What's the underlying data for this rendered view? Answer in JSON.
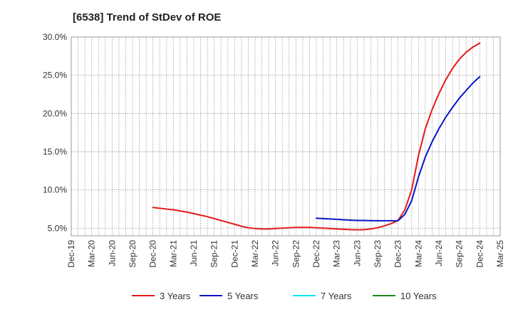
{
  "chart_data": {
    "type": "line",
    "title": "[6538]  Trend of StDev of ROE",
    "xlabel": "",
    "ylabel": "",
    "ylim": [
      4.0,
      30.0
    ],
    "y_ticks": [
      {
        "value": 5,
        "label": "5.0%"
      },
      {
        "value": 10,
        "label": "10.0%"
      },
      {
        "value": 15,
        "label": "15.0%"
      },
      {
        "value": 20,
        "label": "20.0%"
      },
      {
        "value": 25,
        "label": "25.0%"
      },
      {
        "value": 30,
        "label": "30.0%"
      }
    ],
    "x_ticks": [
      "Dec-19",
      "Mar-20",
      "Jun-20",
      "Sep-20",
      "Dec-20",
      "Mar-21",
      "Jun-21",
      "Sep-21",
      "Dec-21",
      "Mar-22",
      "Jun-22",
      "Sep-22",
      "Dec-22",
      "Mar-23",
      "Jun-23",
      "Sep-23",
      "Dec-23",
      "Mar-24",
      "Jun-24",
      "Sep-24",
      "Dec-24",
      "Mar-25"
    ],
    "grid": true,
    "legend_position": "bottom",
    "series": [
      {
        "name": "3 Years",
        "color": "#e31a1c",
        "points": [
          [
            "Dec-20",
            7.7
          ],
          [
            "Jan-21",
            7.6
          ],
          [
            "Feb-21",
            7.5
          ],
          [
            "Mar-21",
            7.4
          ],
          [
            "Apr-21",
            7.25
          ],
          [
            "May-21",
            7.1
          ],
          [
            "Jun-21",
            6.9
          ],
          [
            "Jul-21",
            6.7
          ],
          [
            "Aug-21",
            6.5
          ],
          [
            "Sep-21",
            6.25
          ],
          [
            "Oct-21",
            6.0
          ],
          [
            "Nov-21",
            5.75
          ],
          [
            "Dec-21",
            5.5
          ],
          [
            "Jan-22",
            5.25
          ],
          [
            "Feb-22",
            5.05
          ],
          [
            "Mar-22",
            4.95
          ],
          [
            "Apr-22",
            4.9
          ],
          [
            "May-22",
            4.9
          ],
          [
            "Jun-22",
            4.95
          ],
          [
            "Jul-22",
            5.0
          ],
          [
            "Aug-22",
            5.05
          ],
          [
            "Sep-22",
            5.1
          ],
          [
            "Oct-22",
            5.1
          ],
          [
            "Nov-22",
            5.1
          ],
          [
            "Dec-22",
            5.05
          ],
          [
            "Jan-23",
            5.0
          ],
          [
            "Feb-23",
            4.95
          ],
          [
            "Mar-23",
            4.9
          ],
          [
            "Apr-23",
            4.85
          ],
          [
            "May-23",
            4.8
          ],
          [
            "Jun-23",
            4.78
          ],
          [
            "Jul-23",
            4.8
          ],
          [
            "Aug-23",
            4.9
          ],
          [
            "Sep-23",
            5.05
          ],
          [
            "Oct-23",
            5.3
          ],
          [
            "Nov-23",
            5.6
          ],
          [
            "Dec-23",
            6.0
          ],
          [
            "Jan-24",
            7.4
          ],
          [
            "Feb-24",
            10.0
          ],
          [
            "Mar-24",
            14.5
          ],
          [
            "Apr-24",
            18.0
          ],
          [
            "May-24",
            20.5
          ],
          [
            "Jun-24",
            22.6
          ],
          [
            "Jul-24",
            24.4
          ],
          [
            "Aug-24",
            25.9
          ],
          [
            "Sep-24",
            27.1
          ],
          [
            "Oct-24",
            28.0
          ],
          [
            "Nov-24",
            28.7
          ],
          [
            "Dec-24",
            29.2
          ]
        ]
      },
      {
        "name": "5 Years",
        "color": "#0a14c8",
        "points": [
          [
            "Dec-22",
            6.3
          ],
          [
            "Jan-23",
            6.25
          ],
          [
            "Feb-23",
            6.2
          ],
          [
            "Mar-23",
            6.15
          ],
          [
            "Apr-23",
            6.1
          ],
          [
            "May-23",
            6.05
          ],
          [
            "Jun-23",
            6.0
          ],
          [
            "Jul-23",
            6.0
          ],
          [
            "Aug-23",
            5.98
          ],
          [
            "Sep-23",
            5.97
          ],
          [
            "Oct-23",
            5.97
          ],
          [
            "Nov-23",
            5.97
          ],
          [
            "Dec-23",
            5.98
          ],
          [
            "Jan-24",
            6.8
          ],
          [
            "Feb-24",
            8.6
          ],
          [
            "Mar-24",
            11.7
          ],
          [
            "Apr-24",
            14.3
          ],
          [
            "May-24",
            16.3
          ],
          [
            "Jun-24",
            18.0
          ],
          [
            "Jul-24",
            19.5
          ],
          [
            "Aug-24",
            20.8
          ],
          [
            "Sep-24",
            22.0
          ],
          [
            "Oct-24",
            23.0
          ],
          [
            "Nov-24",
            24.0
          ],
          [
            "Dec-24",
            24.8
          ]
        ]
      },
      {
        "name": "7 Years",
        "color": "#00e5ee",
        "points": []
      },
      {
        "name": "10 Years",
        "color": "#1a8a1a",
        "points": []
      }
    ]
  }
}
